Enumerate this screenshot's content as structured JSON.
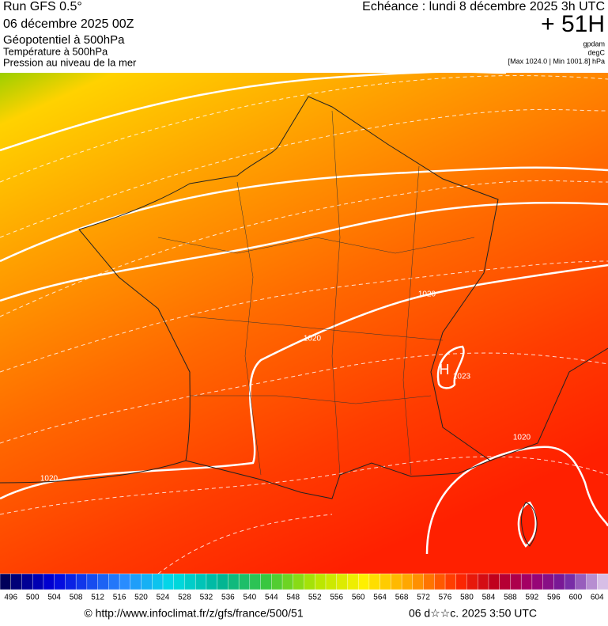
{
  "header": {
    "run": "Run GFS 0.5°",
    "date": "06 décembre 2025 00Z",
    "fields": [
      "Géopotentiel à 500hPa",
      "Température à 500hPa",
      "Pression au niveau de la mer"
    ],
    "forecast": "Echéance : lundi 8 décembre 2025 3h UTC",
    "lead": "+ 51H",
    "units": [
      "gpdam",
      "degC",
      "[Max 1024.0 | Min 1001.8] hPa"
    ]
  },
  "map": {
    "isobar_labels": [
      "1020",
      "1020",
      "1020",
      "1020"
    ],
    "high": {
      "symbol": "H",
      "value": "1023"
    }
  },
  "legend": {
    "labels": [
      496,
      500,
      504,
      508,
      512,
      516,
      520,
      524,
      528,
      532,
      536,
      540,
      544,
      548,
      552,
      556,
      560,
      564,
      568,
      572,
      576,
      580,
      584,
      588,
      592,
      596,
      600,
      604
    ]
  },
  "footer": {
    "url": "© http://www.infoclimat.fr/z/gfs/france/500/51",
    "time": "06 d☆☆c. 2025  3:50 UTC"
  }
}
